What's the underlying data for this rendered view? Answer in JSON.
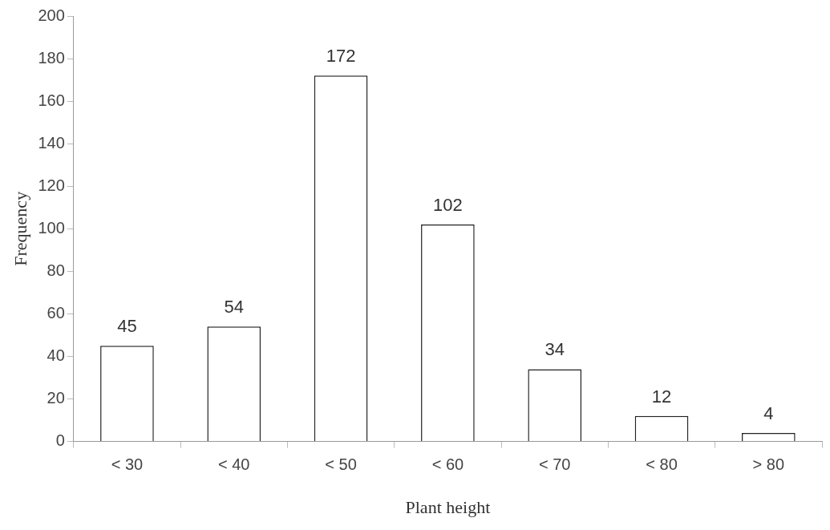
{
  "chart_data": {
    "type": "bar",
    "xlabel": "Plant height",
    "ylabel": "Frequency",
    "categories": [
      "< 30",
      "< 40",
      "< 50",
      "< 60",
      "< 70",
      "< 80",
      "> 80"
    ],
    "values": [
      45,
      54,
      172,
      102,
      34,
      12,
      4
    ],
    "color": "#ffffff",
    "ylim": [
      0,
      200
    ],
    "yticks": [
      0,
      20,
      40,
      60,
      80,
      100,
      120,
      140,
      160,
      180,
      200
    ],
    "grid": false,
    "legend": false,
    "data_labels": true
  }
}
